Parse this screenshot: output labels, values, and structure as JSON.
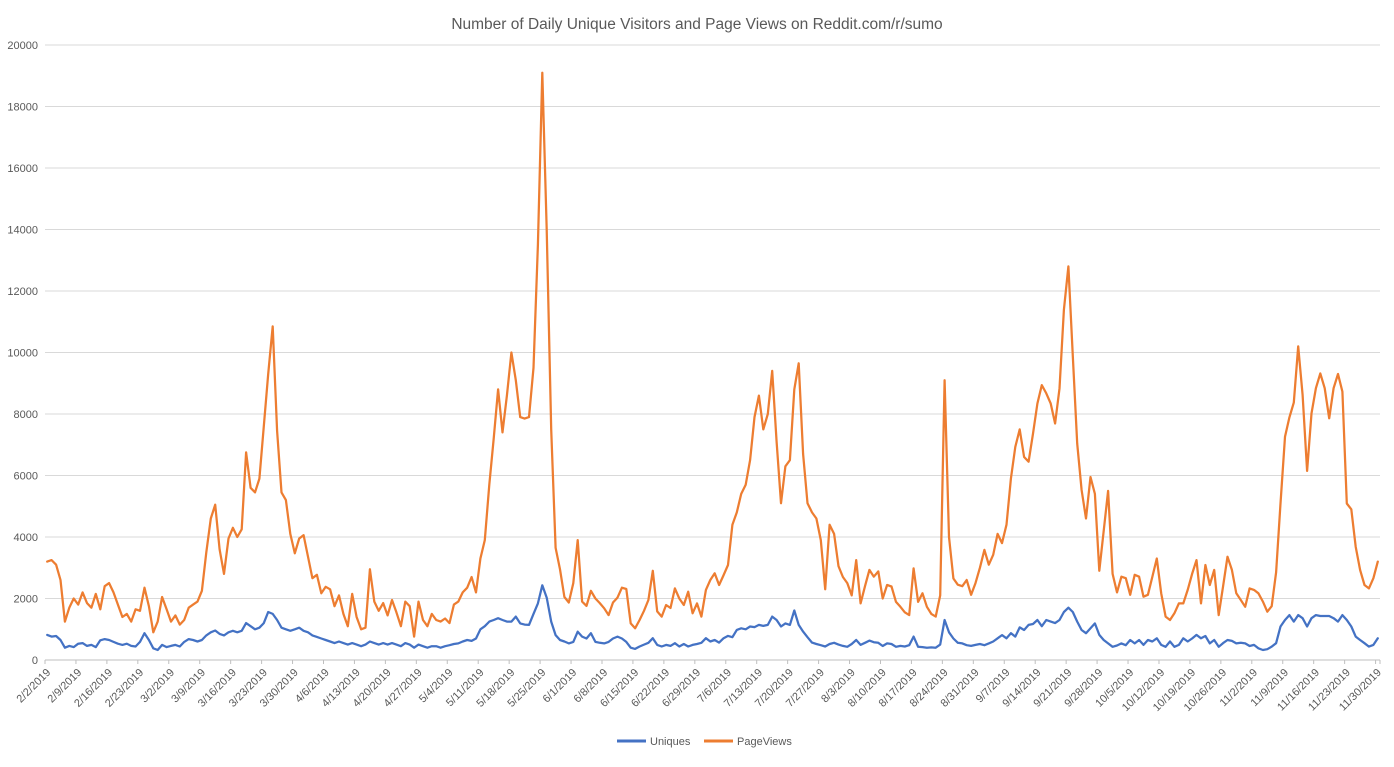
{
  "chart_data": {
    "type": "line",
    "title": "Number of Daily Unique Visitors and Page Views on Reddit.com/r/sumo",
    "xlabel": "",
    "ylabel": "",
    "ylim": [
      0,
      20000
    ],
    "y_tick_step": 2000,
    "y_tick_labels": [
      "0",
      "2000",
      "4000",
      "6000",
      "8000",
      "10000",
      "12000",
      "14000",
      "16000",
      "18000",
      "20000"
    ],
    "grid": true,
    "legend_position": "bottom",
    "x_start_date": "2/2/2019",
    "x_frequency": "daily",
    "x_tick_labels": [
      "2/2/2019",
      "2/9/2019",
      "2/16/2019",
      "2/23/2019",
      "3/2/2019",
      "3/9/2019",
      "3/16/2019",
      "3/23/2019",
      "3/30/2019",
      "4/6/2019",
      "4/13/2019",
      "4/20/2019",
      "4/27/2019",
      "5/4/2019",
      "5/11/2019",
      "5/18/2019",
      "5/25/2019",
      "6/1/2019",
      "6/8/2019",
      "6/15/2019",
      "6/22/2019",
      "6/29/2019",
      "7/6/2019",
      "7/13/2019",
      "7/20/2019",
      "7/27/2019",
      "8/3/2019",
      "8/10/2019",
      "8/17/2019",
      "8/24/2019",
      "8/31/2019",
      "9/7/2019",
      "9/14/2019",
      "9/21/2019",
      "9/28/2019",
      "10/5/2019",
      "10/12/2019",
      "10/19/2019",
      "10/26/2019",
      "11/2/2019",
      "11/9/2019",
      "11/16/2019",
      "11/23/2019",
      "11/30/2019"
    ],
    "colors": {
      "uniques": "#4472C4",
      "pageviews": "#ED7D31",
      "grid": "#D9D9D9",
      "axis": "#BFBFBF",
      "text": "#595959"
    },
    "series": [
      {
        "name": "Uniques",
        "values": [
          815,
          760,
          780,
          650,
          400,
          460,
          420,
          530,
          550,
          460,
          490,
          420,
          640,
          680,
          650,
          590,
          530,
          490,
          530,
          460,
          440,
          590,
          870,
          650,
          380,
          325,
          490,
          420,
          460,
          490,
          440,
          590,
          680,
          650,
          600,
          650,
          800,
          900,
          960,
          850,
          800,
          900,
          950,
          900,
          950,
          1200,
          1100,
          1000,
          1050,
          1200,
          1560,
          1500,
          1300,
          1050,
          1000,
          950,
          1000,
          1050,
          950,
          900,
          800,
          750,
          700,
          650,
          600,
          550,
          600,
          550,
          500,
          550,
          500,
          450,
          500,
          600,
          550,
          500,
          550,
          500,
          550,
          500,
          450,
          550,
          500,
          400,
          500,
          450,
          400,
          450,
          450,
          400,
          450,
          480,
          520,
          540,
          600,
          650,
          620,
          700,
          1000,
          1100,
          1250,
          1300,
          1360,
          1300,
          1250,
          1250,
          1410,
          1190,
          1150,
          1140,
          1500,
          1840,
          2430,
          2030,
          1250,
          810,
          650,
          600,
          540,
          590,
          920,
          760,
          700,
          870,
          590,
          560,
          540,
          590,
          700,
          760,
          700,
          590,
          400,
          360,
          440,
          500,
          560,
          710,
          490,
          440,
          490,
          460,
          545,
          440,
          520,
          440,
          490,
          520,
          560,
          710,
          600,
          650,
          565,
          710,
          785,
          740,
          980,
          1030,
          1000,
          1090,
          1070,
          1140,
          1110,
          1140,
          1410,
          1300,
          1090,
          1190,
          1140,
          1610,
          1140,
          925,
          740,
          565,
          520,
          480,
          440,
          520,
          560,
          500,
          460,
          430,
          520,
          650,
          490,
          560,
          630,
          580,
          560,
          455,
          540,
          520,
          430,
          460,
          440,
          480,
          760,
          430,
          420,
          400,
          410,
          400,
          500,
          1300,
          900,
          700,
          560,
          540,
          480,
          460,
          490,
          520,
          480,
          540,
          600,
          705,
          810,
          705,
          870,
          760,
          1060,
          975,
          1140,
          1170,
          1300,
          1100,
          1300,
          1250,
          1200,
          1300,
          1560,
          1700,
          1560,
          1250,
          975,
          870,
          1030,
          1190,
          815,
          650,
          540,
          430,
          470,
          540,
          480,
          650,
          540,
          650,
          490,
          650,
          600,
          705,
          490,
          430,
          600,
          430,
          490,
          705,
          600,
          700,
          815,
          705,
          780,
          540,
          650,
          430,
          550,
          650,
          620,
          540,
          560,
          540,
          455,
          490,
          380,
          325,
          350,
          435,
          545,
          1090,
          1300,
          1460,
          1250,
          1460,
          1360,
          1090,
          1360,
          1460,
          1430,
          1430,
          1430,
          1360,
          1250,
          1460,
          1300,
          1090,
          760,
          650,
          545,
          435,
          490,
          705
        ]
      },
      {
        "name": "PageViews",
        "values": [
          3200,
          3250,
          3100,
          2600,
          1250,
          1700,
          2000,
          1800,
          2200,
          1850,
          1700,
          2150,
          1650,
          2400,
          2500,
          2200,
          1800,
          1400,
          1500,
          1250,
          1650,
          1600,
          2350,
          1750,
          900,
          1250,
          2050,
          1650,
          1250,
          1450,
          1150,
          1300,
          1700,
          1800,
          1900,
          2250,
          3500,
          4600,
          5050,
          3600,
          2800,
          3950,
          4300,
          4000,
          4250,
          6750,
          5600,
          5450,
          5900,
          7600,
          9300,
          10850,
          7450,
          5450,
          5200,
          4100,
          3470,
          3950,
          4060,
          3360,
          2660,
          2770,
          2170,
          2380,
          2300,
          1750,
          2100,
          1500,
          1100,
          2150,
          1400,
          1000,
          1050,
          2950,
          1900,
          1600,
          1850,
          1450,
          1950,
          1550,
          1100,
          1900,
          1750,
          760,
          1900,
          1300,
          1100,
          1500,
          1300,
          1250,
          1350,
          1200,
          1800,
          1900,
          2200,
          2350,
          2700,
          2200,
          3300,
          3900,
          5700,
          7200,
          8800,
          7400,
          8600,
          10000,
          9100,
          7900,
          7850,
          7900,
          9500,
          13500,
          19100,
          14000,
          7500,
          3650,
          2950,
          2050,
          1870,
          2500,
          3900,
          1900,
          1760,
          2250,
          2000,
          1850,
          1680,
          1460,
          1870,
          2030,
          2350,
          2310,
          1190,
          1030,
          1300,
          1600,
          1950,
          2900,
          1580,
          1410,
          1790,
          1690,
          2330,
          2000,
          1790,
          2220,
          1520,
          1840,
          1410,
          2280,
          2600,
          2820,
          2440,
          2760,
          3090,
          4400,
          4800,
          5400,
          5700,
          6500,
          7900,
          8600,
          7500,
          8000,
          9400,
          7100,
          5100,
          6300,
          6500,
          8800,
          9650,
          6700,
          5100,
          4800,
          4600,
          3900,
          2300,
          4400,
          4100,
          3050,
          2700,
          2500,
          2100,
          3250,
          1840,
          2400,
          2930,
          2710,
          2880,
          2000,
          2440,
          2390,
          1890,
          1730,
          1550,
          1460,
          2980,
          1890,
          2170,
          1730,
          1500,
          1410,
          2100,
          9100,
          4000,
          2650,
          2450,
          2400,
          2600,
          2120,
          2500,
          3000,
          3580,
          3100,
          3420,
          4100,
          3800,
          4400,
          5900,
          6930,
          7500,
          6600,
          6450,
          7360,
          8340,
          8940,
          8670,
          8340,
          7690,
          8830,
          11390,
          12800,
          9890,
          7040,
          5530,
          4600,
          5950,
          5400,
          2900,
          4200,
          5500,
          2800,
          2200,
          2710,
          2660,
          2120,
          2770,
          2710,
          2060,
          2120,
          2700,
          3300,
          2170,
          1410,
          1300,
          1520,
          1840,
          1840,
          2280,
          2800,
          3250,
          1840,
          3090,
          2440,
          2930,
          1460,
          2400,
          3360,
          2930,
          2170,
          1950,
          1730,
          2330,
          2280,
          2170,
          1900,
          1570,
          1750,
          2850,
          5090,
          7260,
          7890,
          8370,
          10200,
          8620,
          6150,
          8020,
          8840,
          9320,
          8840,
          7860,
          8840,
          9300,
          8730,
          5090,
          4900,
          3680,
          2930,
          2440,
          2330,
          2660,
          3200
        ]
      }
    ]
  }
}
